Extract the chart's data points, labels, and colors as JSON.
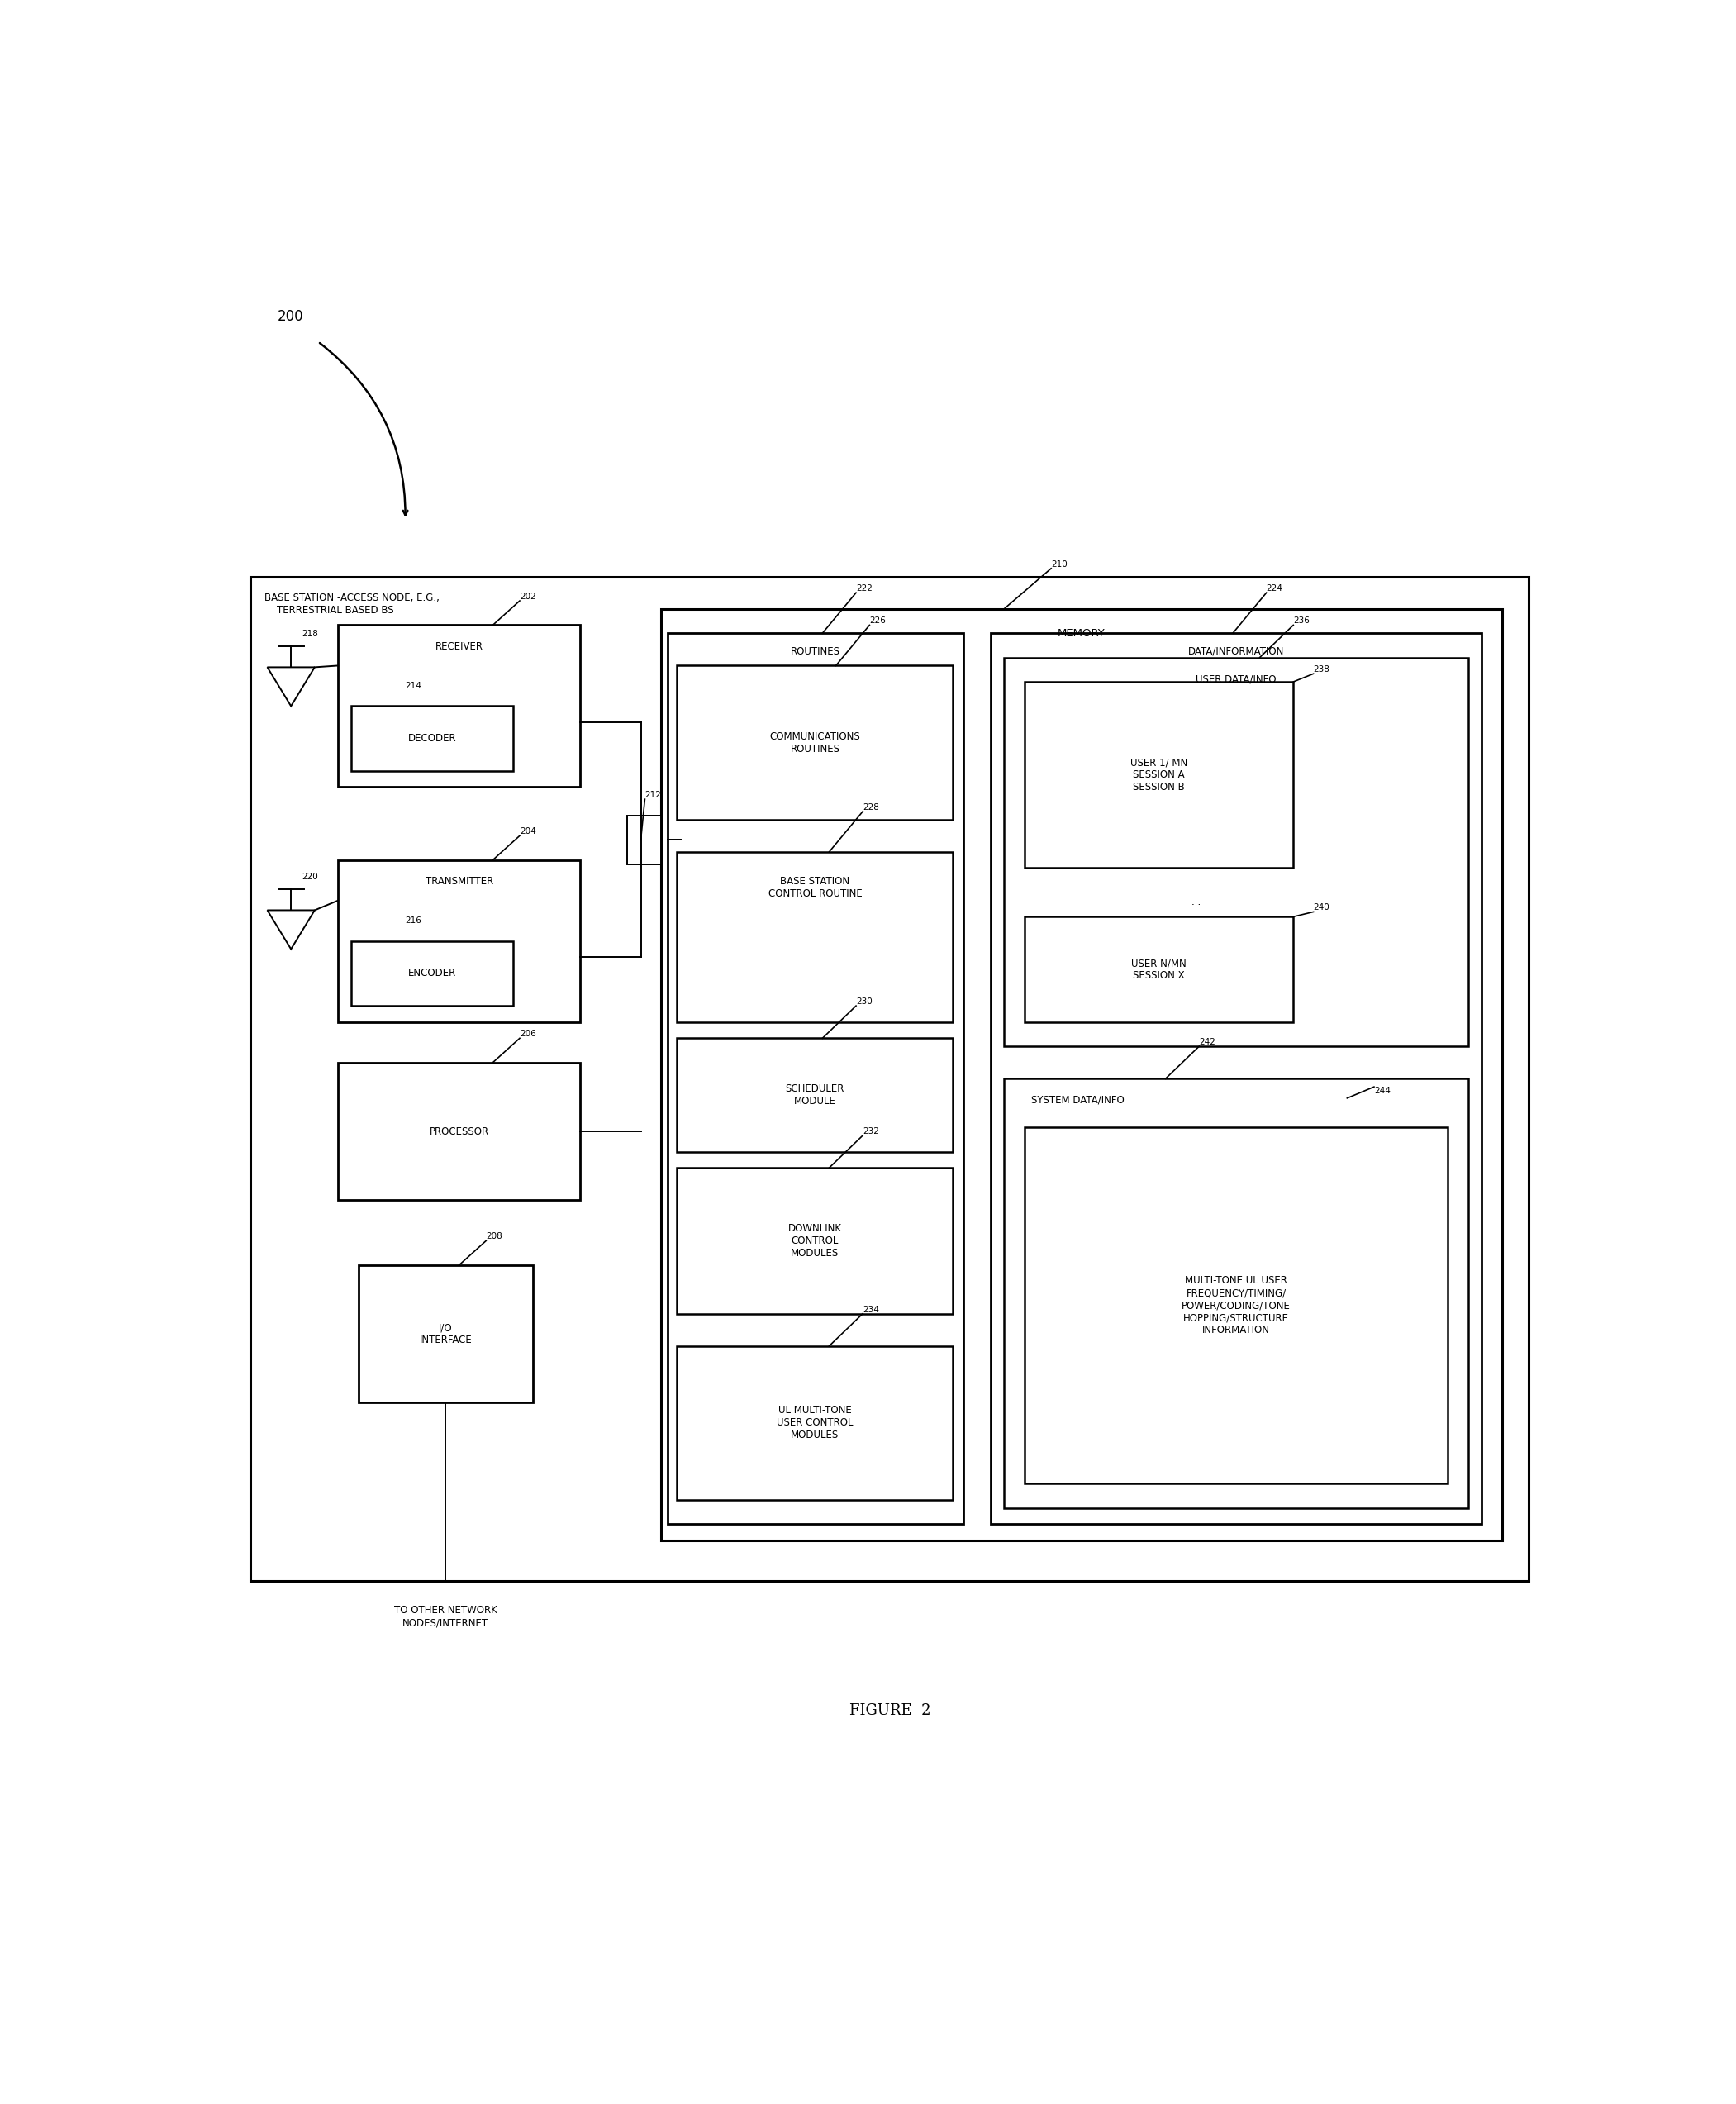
{
  "fig_width": 21.01,
  "fig_height": 25.46,
  "bg_color": "#ffffff",
  "title": "FIGURE  2",
  "label_200": "200",
  "label_210": "210",
  "label_202": "202",
  "label_204": "204",
  "label_206": "206",
  "label_208": "208",
  "label_212": "212",
  "label_214": "214",
  "label_216": "216",
  "label_218": "218",
  "label_220": "220",
  "label_222": "222",
  "label_224": "224",
  "label_226": "226",
  "label_228": "228",
  "label_230": "230",
  "label_232": "232",
  "label_234": "234",
  "label_236": "236",
  "label_238": "238",
  "label_240": "240",
  "label_242": "242",
  "label_244": "244",
  "text_bs": "BASE STATION -ACCESS NODE, E.G.,\n    TERRESTRIAL BASED BS",
  "text_memory": "MEMORY",
  "text_receiver": "RECEIVER",
  "text_decoder": "DECODER",
  "text_transmitter": "TRANSMITTER",
  "text_encoder": "ENCODER",
  "text_processor": "PROCESSOR",
  "text_io": "I/O\nINTERFACE",
  "text_routines": "ROUTINES",
  "text_comm_routines": "COMMUNICATIONS\nROUTINES",
  "text_bs_control": "BASE STATION\nCONTROL ROUTINE",
  "text_scheduler": "SCHEDULER\nMODULE",
  "text_downlink": "DOWNLINK\nCONTROL\nMODULES",
  "text_ul_multi": "UL MULTI-TONE\nUSER CONTROL\nMODULES",
  "text_data_info": "DATA/INFORMATION",
  "text_user_data": "USER DATA/INFO",
  "text_user1": "USER 1/ MN\nSESSION A\nSESSION B",
  "text_usern": "USER N/MN\nSESSION X",
  "text_system_data": "SYSTEM DATA/INFO",
  "text_multitone": "MULTI-TONE UL USER\nFREQUENCY/TIMING/\nPOWER/CODING/TONE\nHOPPING/STRUCTURE\nINFORMATION",
  "text_to_network": "TO OTHER NETWORK\nNODES/INTERNET"
}
